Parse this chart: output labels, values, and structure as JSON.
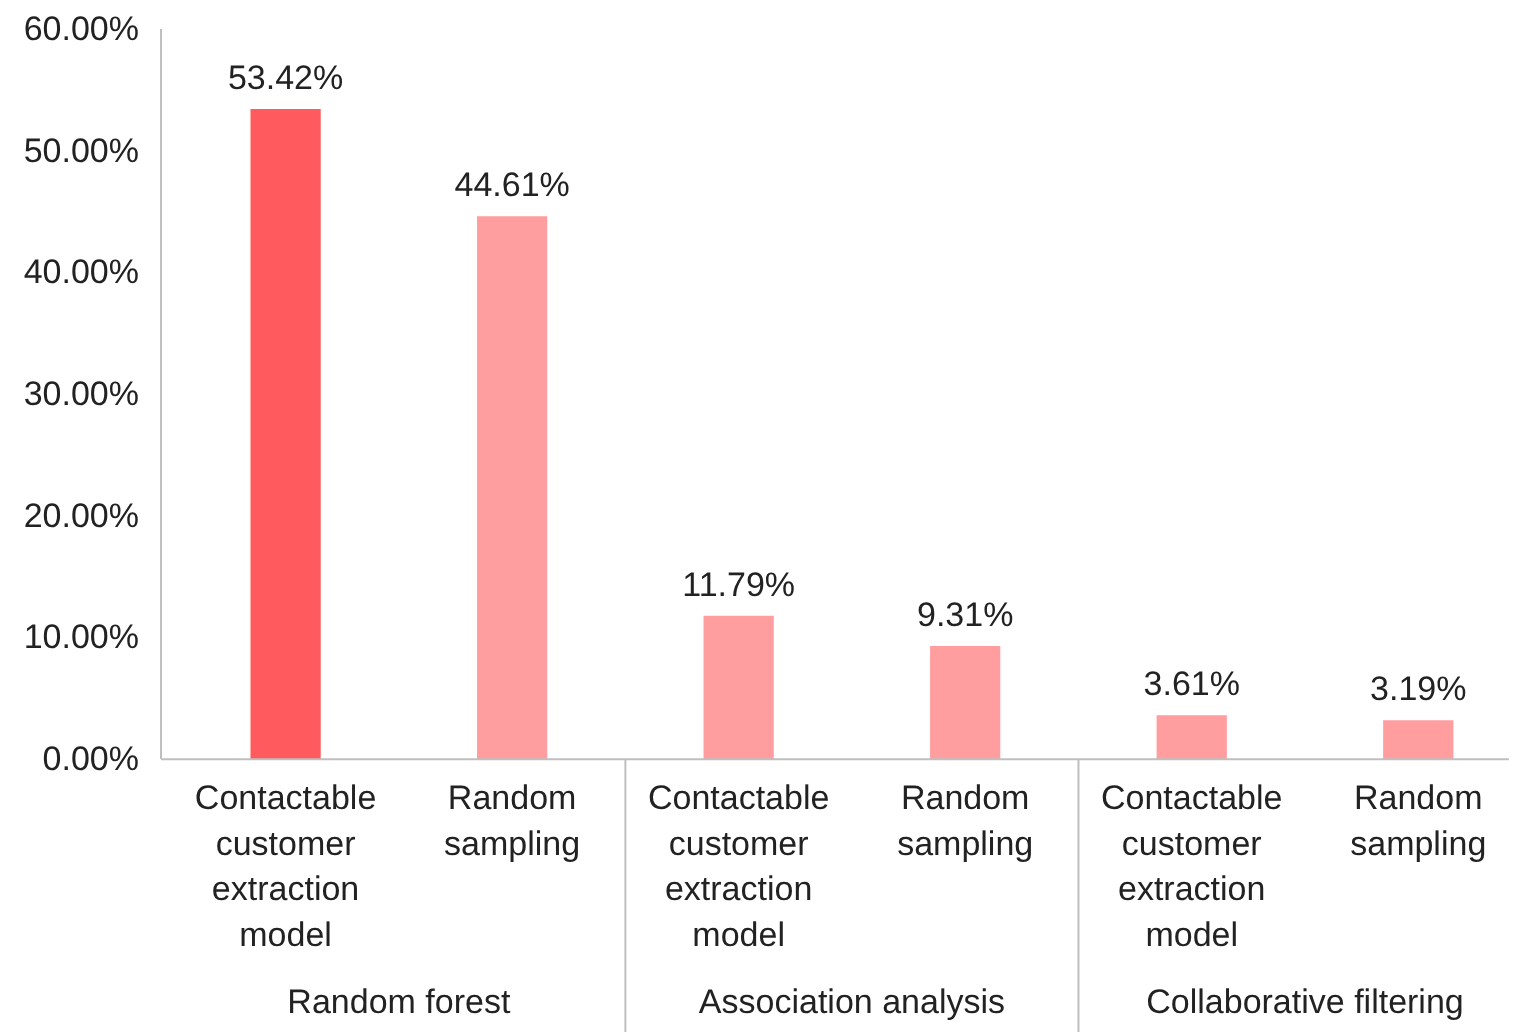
{
  "chart_data": {
    "type": "bar",
    "categories": [
      "Contactable customer extraction model",
      "Random sampling",
      "Contactable customer extraction model",
      "Random sampling",
      "Contactable customer extraction model",
      "Random sampling"
    ],
    "values": [
      53.42,
      44.61,
      11.79,
      9.31,
      3.61,
      3.19
    ],
    "colors": [
      "#ff5b5e",
      "#ff9d9f",
      "#ff9d9f",
      "#ff9d9f",
      "#ff9d9f",
      "#ff9d9f"
    ],
    "value_labels": [
      "53.42%",
      "44.61%",
      "11.79%",
      "9.31%",
      "3.61%",
      "3.19%"
    ],
    "ylim": [
      0,
      60
    ],
    "yticks": [
      {
        "value": 0,
        "label": "0.00%"
      },
      {
        "value": 10,
        "label": "10.00%"
      },
      {
        "value": 20,
        "label": "20.00%"
      },
      {
        "value": 30,
        "label": "30.00%"
      },
      {
        "value": 40,
        "label": "40.00%"
      },
      {
        "value": 50,
        "label": "50.00%"
      },
      {
        "value": 60,
        "label": "60.00%"
      }
    ],
    "annotations": [
      "Random forest",
      "Association analysis",
      "Collaborative filtering"
    ],
    "grid": false
  }
}
